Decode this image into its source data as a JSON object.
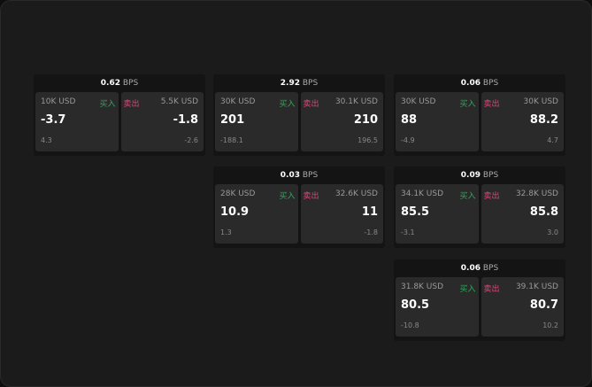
{
  "unit": "BPS",
  "buy_label": "买入",
  "sell_label": "卖出",
  "colors": {
    "buy": "#2fa85a",
    "sell": "#e0437a"
  },
  "quotes": [
    {
      "spread": "0.62",
      "bid_size": "10K USD",
      "bid": "-3.7",
      "bid_change": "4.3",
      "ask_size": "5.5K USD",
      "ask": "-1.8",
      "ask_change": "-2.6"
    },
    {
      "spread": "2.92",
      "bid_size": "30K USD",
      "bid": "201",
      "bid_change": "-188.1",
      "ask_size": "30.1K USD",
      "ask": "210",
      "ask_change": "196.5"
    },
    {
      "spread": "0.06",
      "bid_size": "30K USD",
      "bid": "88",
      "bid_change": "-4.9",
      "ask_size": "30K USD",
      "ask": "88.2",
      "ask_change": "4.7"
    },
    {
      "spread": "0.03",
      "bid_size": "28K USD",
      "bid": "10.9",
      "bid_change": "1.3",
      "ask_size": "32.6K USD",
      "ask": "11",
      "ask_change": "-1.8"
    },
    {
      "spread": "0.09",
      "bid_size": "34.1K USD",
      "bid": "85.5",
      "bid_change": "-3.1",
      "ask_size": "32.8K USD",
      "ask": "85.8",
      "ask_change": "3.0"
    },
    {
      "spread": "0.06",
      "bid_size": "31.8K USD",
      "bid": "80.5",
      "bid_change": "-10.8",
      "ask_size": "39.1K USD",
      "ask": "80.7",
      "ask_change": "10.2"
    }
  ]
}
